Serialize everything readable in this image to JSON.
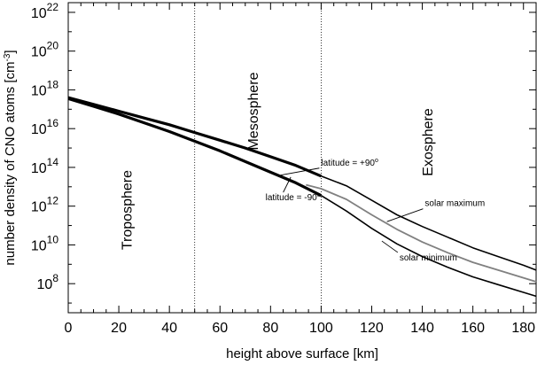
{
  "chart_data": {
    "type": "line",
    "title": "",
    "xlabel": "height above surface  [km]",
    "ylabel": "number density of CNO atoms  [cm",
    "ylabel_sup": "-3",
    "ylabel_close": "]",
    "y_scale": "log",
    "xlim": [
      0,
      185
    ],
    "ylim_exp": [
      6.5,
      22.5
    ],
    "x_ticks": [
      0,
      20,
      40,
      60,
      80,
      100,
      120,
      140,
      160,
      180
    ],
    "y_tick_exponents": [
      8,
      10,
      12,
      14,
      16,
      18,
      20,
      22
    ],
    "y_tick_base": "10",
    "grid": false,
    "vertical_lines": [
      50,
      100
    ],
    "regions": [
      {
        "name": "Troposphere",
        "x": 25,
        "y_exp": 11.8
      },
      {
        "name": "Mesosphere",
        "x": 75,
        "y_exp": 16.9
      },
      {
        "name": "Exosphere",
        "x": 144,
        "y_exp": 15.3
      }
    ],
    "series": [
      {
        "name": "latitude = +90°",
        "log10_values": [
          [
            0,
            17.6
          ],
          [
            10,
            17.25
          ],
          [
            20,
            16.9
          ],
          [
            30,
            16.55
          ],
          [
            40,
            16.2
          ],
          [
            50,
            15.8
          ],
          [
            60,
            15.4
          ],
          [
            70,
            15.0
          ],
          [
            80,
            14.55
          ],
          [
            90,
            14.1
          ],
          [
            100,
            13.55
          ]
        ]
      },
      {
        "name": "latitude = -90°",
        "log10_values": [
          [
            0,
            17.55
          ],
          [
            10,
            17.15
          ],
          [
            20,
            16.75
          ],
          [
            30,
            16.3
          ],
          [
            40,
            15.85
          ],
          [
            50,
            15.35
          ],
          [
            60,
            14.85
          ],
          [
            70,
            14.3
          ],
          [
            80,
            13.75
          ],
          [
            90,
            13.2
          ],
          [
            100,
            12.55
          ]
        ]
      },
      {
        "name": "solar maximum",
        "log10_values": [
          [
            100,
            13.55
          ],
          [
            110,
            13.05
          ],
          [
            120,
            12.3
          ],
          [
            130,
            11.55
          ],
          [
            140,
            10.95
          ],
          [
            150,
            10.4
          ],
          [
            160,
            9.85
          ],
          [
            170,
            9.4
          ],
          [
            180,
            8.95
          ],
          [
            185,
            8.7
          ]
        ]
      },
      {
        "name": "solar minimum",
        "log10_values": [
          [
            100,
            12.55
          ],
          [
            110,
            11.75
          ],
          [
            120,
            10.85
          ],
          [
            130,
            10.05
          ],
          [
            140,
            9.4
          ],
          [
            150,
            8.85
          ],
          [
            160,
            8.35
          ],
          [
            170,
            7.95
          ],
          [
            180,
            7.55
          ],
          [
            185,
            7.35
          ]
        ]
      },
      {
        "name": "",
        "log10_values": [
          [
            94,
            13.1
          ],
          [
            100,
            12.9
          ],
          [
            110,
            12.35
          ],
          [
            120,
            11.55
          ],
          [
            130,
            10.8
          ],
          [
            140,
            10.15
          ],
          [
            150,
            9.6
          ],
          [
            160,
            9.1
          ],
          [
            170,
            8.7
          ],
          [
            180,
            8.3
          ],
          [
            185,
            8.1
          ]
        ]
      }
    ],
    "annotations": [
      {
        "text": "latitude = +90",
        "deg": "o",
        "x": 100,
        "y_exp": 14.1,
        "points_to": [
          84,
          13.6
        ]
      },
      {
        "text": "latitude = -90",
        "deg": "o",
        "x": 78,
        "y_exp": 12.3,
        "points_to": [
          88,
          13.5
        ]
      },
      {
        "text": "solar maximum",
        "x": 141,
        "y_exp": 12.0,
        "points_to": [
          126,
          11.2
        ]
      },
      {
        "text": "solar minimum",
        "x": 131,
        "y_exp": 9.2,
        "points_to": [
          124,
          10.2
        ]
      }
    ]
  }
}
